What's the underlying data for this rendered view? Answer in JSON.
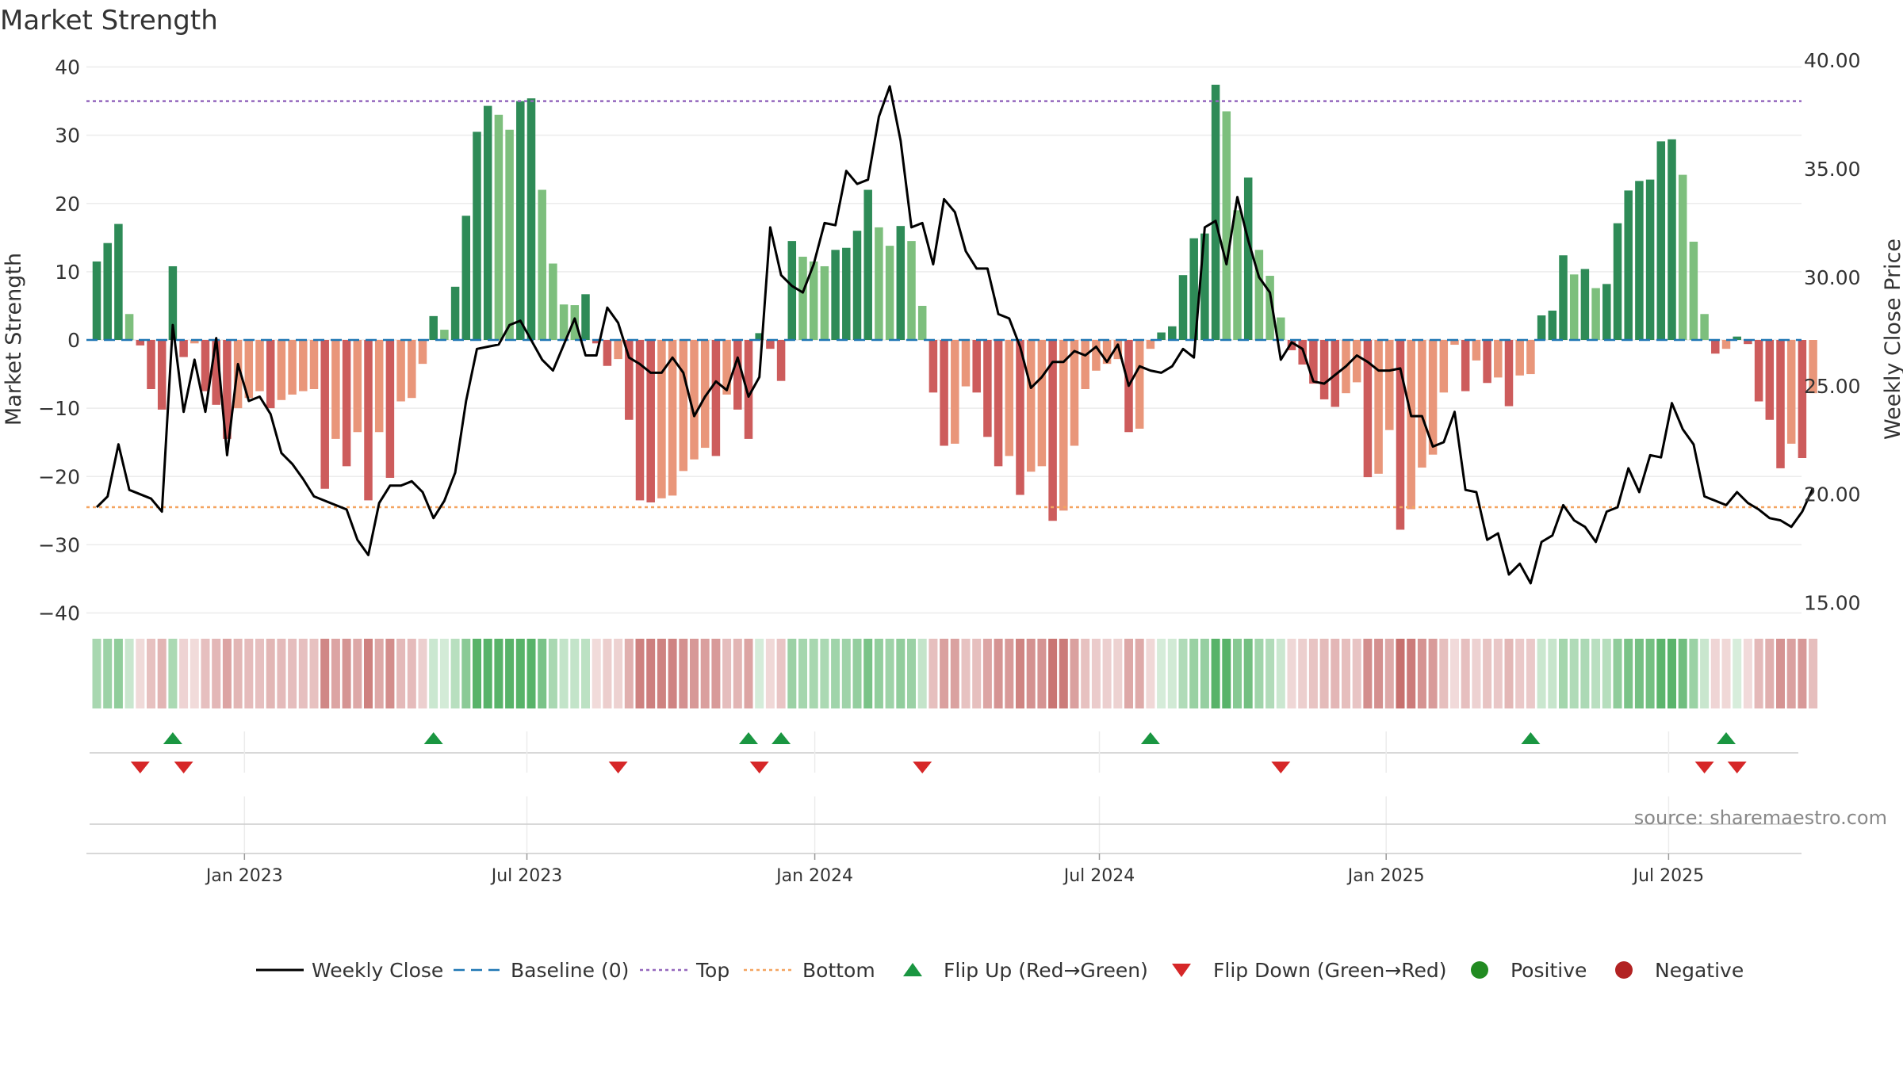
{
  "chart_data": {
    "type": "bar+line",
    "title": "Market Strength",
    "ylabel_left": "Market Strength",
    "ylabel_right": "Weekly Close Price",
    "ylim_left": [
      -40,
      40
    ],
    "ylim_right": [
      14,
      41.5
    ],
    "yticks_left": [
      40,
      30,
      20,
      10,
      0,
      -10,
      -20,
      -30,
      -40
    ],
    "yticks_left_labels": [
      "40",
      "30",
      "20",
      "10",
      "0",
      "−10",
      "−20",
      "−30",
      "−40"
    ],
    "yticks_right": [
      40,
      35,
      30,
      25,
      20,
      15
    ],
    "yticks_right_labels": [
      "40.00",
      "35.00",
      "30.00",
      "25.00",
      "20.00",
      "15.00"
    ],
    "x_range_weeks": [
      -12,
      147
    ],
    "x_tick_weeks": [
      13.6,
      39.6,
      66.1,
      92.3,
      118.7,
      144.7
    ],
    "x_tick_labels": [
      "Jan 2023",
      "Jul 2023",
      "Jan 2024",
      "Jul 2024",
      "Jan 2025",
      "Jul 2025"
    ],
    "top_level": 35,
    "bottom_level": -24.5,
    "strength": [
      11.5,
      14.2,
      17,
      3.8,
      -0.8,
      -7.2,
      -10.2,
      10.8,
      -2.5,
      -0.5,
      -7.5,
      -9.5,
      -14.5,
      -10,
      -8.5,
      -7.5,
      -10,
      -8.8,
      -8,
      -7.5,
      -7.2,
      -21.8,
      -14.5,
      -18.5,
      -13.5,
      -23.5,
      -13.5,
      -20.2,
      -9,
      -8.5,
      -3.5,
      3.5,
      1.5,
      7.8,
      18.2,
      30.5,
      34.3,
      33,
      30.8,
      35,
      35.4,
      22,
      11.2,
      5.2,
      5.1,
      6.7,
      -0.5,
      -3.8,
      -2.8,
      -11.7,
      -23.5,
      -23.8,
      -23.2,
      -22.8,
      -19.2,
      -17.5,
      -15.8,
      -17,
      -8,
      -10.2,
      -14.5,
      1,
      -1.3,
      -6,
      14.5,
      12.2,
      11.5,
      10.8,
      13.2,
      13.5,
      16,
      22,
      16.5,
      13.8,
      16.7,
      14.5,
      5,
      -7.7,
      -15.5,
      -15.2,
      -6.8,
      -7.7,
      -14.2,
      -18.5,
      -17,
      -22.7,
      -19.3,
      -18.5,
      -26.5,
      -25,
      -15.5,
      -7.2,
      -4.5,
      -3.5,
      -2.8,
      -13.5,
      -13,
      -1.3,
      1.1,
      2,
      9.5,
      14.9,
      15.6,
      37.4,
      33.5,
      19,
      23.8,
      13.2,
      9.4,
      3.3,
      -1.5,
      -3.6,
      -6.4,
      -8.7,
      -9.8,
      -7.8,
      -6.2,
      -20.1,
      -19.6,
      -13.2,
      -27.8,
      -24.8,
      -18.7,
      -16.8,
      -7.7,
      -0.7,
      -7.5,
      -3,
      -6.3,
      -5.5,
      -9.7,
      -5.2,
      -5,
      3.6,
      4.3,
      12.4,
      9.6,
      10.4,
      7.6,
      8.2,
      17.1,
      21.9,
      23.3,
      23.5,
      29.1,
      29.4,
      24.2,
      14.4,
      3.8,
      -2,
      -1.3,
      0.5,
      -0.6,
      -9,
      -11.7,
      -18.8,
      -15.2,
      -17.3,
      -7.8
    ],
    "close": [
      19.4,
      19.9,
      22.3,
      20.2,
      20,
      19.8,
      19.2,
      27.8,
      23.8,
      26.2,
      23.8,
      27.2,
      21.8,
      26,
      24.3,
      24.5,
      23.7,
      21.9,
      21.4,
      20.7,
      19.9,
      19.7,
      19.5,
      19.3,
      17.9,
      17.2,
      19.6,
      20.4,
      20.4,
      20.6,
      20.1,
      18.9,
      19.7,
      21,
      24.3,
      26.7,
      26.8,
      26.9,
      27.8,
      28,
      27.1,
      26.2,
      25.7,
      26.9,
      28.1,
      26.4,
      26.4,
      28.6,
      27.9,
      26.3,
      26,
      25.6,
      25.6,
      26.3,
      25.6,
      23.6,
      24.5,
      25.2,
      24.8,
      26.3,
      24.5,
      25.4,
      32.3,
      30.1,
      29.6,
      29.3,
      30.6,
      32.5,
      32.4,
      34.9,
      34.3,
      34.5,
      37.4,
      38.8,
      36.3,
      32.3,
      32.5,
      30.6,
      33.6,
      33,
      31.2,
      30.4,
      30.4,
      28.3,
      28.1,
      26.8,
      24.9,
      25.4,
      26.1,
      26.1,
      26.6,
      26.4,
      26.8,
      26.1,
      26.9,
      25,
      25.9,
      25.7,
      25.6,
      25.9,
      26.7,
      26.3,
      32.3,
      32.6,
      30.6,
      33.7,
      31.7,
      30,
      29.3,
      26.2,
      27,
      26.7,
      25.2,
      25.1,
      25.5,
      25.9,
      26.4,
      26.1,
      25.7,
      25.7,
      25.8,
      23.6,
      23.6,
      22.2,
      22.4,
      23.8,
      20.2,
      20.1,
      17.9,
      18.2,
      16.3,
      16.8,
      15.9,
      17.8,
      18.1,
      19.5,
      18.8,
      18.5,
      17.8,
      19.2,
      19.4,
      21.2,
      20.1,
      21.8,
      21.7,
      24.2,
      23,
      22.3,
      19.9,
      19.7,
      19.5,
      20.1,
      19.6,
      19.3,
      18.9,
      18.8,
      18.5,
      19.2,
      20.3
    ],
    "flip_up_weeks": [
      7,
      31,
      60,
      63,
      97,
      132,
      150
    ],
    "flip_down_weeks": [
      4,
      8,
      48,
      61,
      76,
      109,
      148,
      151
    ],
    "legend": [
      "Weekly Close",
      "Baseline (0)",
      "Top",
      "Bottom",
      "Flip Up (Red→Green)",
      "Flip Down (Green→Red)",
      "Positive",
      "Negative"
    ],
    "annotation": "source: sharemaestro.com"
  },
  "colors": {
    "pos_strong": "#2e8b57",
    "pos_light": "#7dbf7d",
    "neg_strong": "#cd5c5c",
    "neg_light": "#e9967a",
    "line": "#000000",
    "top": "#9467bd",
    "bottom": "#f4a460",
    "baseline": "#1f77b4",
    "flip_up": "#1a9641",
    "flip_down": "#d62728",
    "positive_dot": "#228b22",
    "negative_dot": "#b22222"
  }
}
